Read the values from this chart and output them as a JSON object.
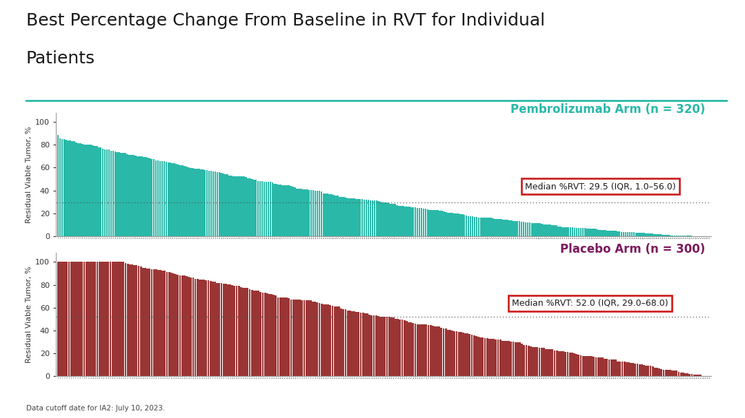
{
  "title_line1": "Best Percentage Change From Baseline in RVT for Individual",
  "title_line2": "Patients",
  "title_fontsize": 18,
  "title_color": "#1a1a1a",
  "bg_color": "#ffffff",
  "header_line_color": "#2ab8a8",
  "pembro_label": "Pembrolizumab Arm (n = 320)",
  "pembro_color": "#2ab8a8",
  "pembro_n": 320,
  "pembro_median": 29.5,
  "pembro_annotation": "Median %RVT: 29.5 (IQR, 1.0–56.0)",
  "placebo_label": "Placebo Arm (n = 300)",
  "placebo_color": "#9b3535",
  "placebo_n": 300,
  "placebo_median": 52.0,
  "placebo_annotation": "Median %RVT: 52.0 (IQR, 29.0–68.0)",
  "placebo_label_color": "#7b1a5e",
  "ylabel": "Residual Viable Tumor, %",
  "ylim": [
    0,
    108
  ],
  "yticks": [
    0,
    20,
    40,
    60,
    80,
    100
  ],
  "footnote": "Data cutoff date for IA2: July 10, 2023.",
  "annotation_box_color": "#cc2222",
  "annotation_text_color": "#1a1a1a",
  "annotation_fontsize": 9
}
